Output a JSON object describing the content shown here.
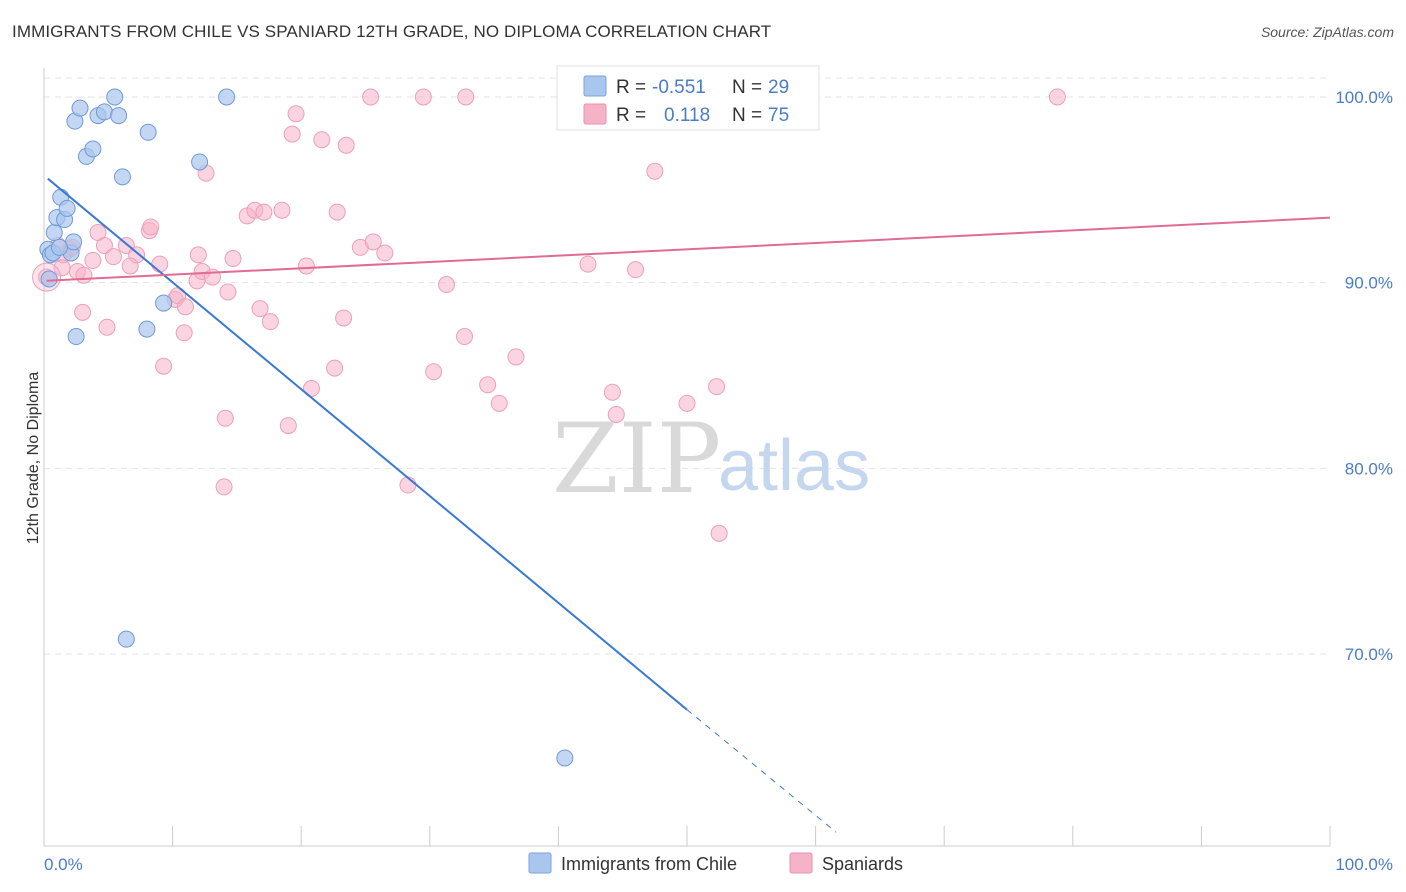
{
  "title": "IMMIGRANTS FROM CHILE VS SPANIARD 12TH GRADE, NO DIPLOMA CORRELATION CHART",
  "source": "Source: ZipAtlas.com",
  "watermark": {
    "zip": "ZIP",
    "atlas": "atlas"
  },
  "colors": {
    "blue": "#4a7cc9",
    "blue_fill": "#a9c6ee",
    "blue_line": "#3b78d4",
    "pink_fill": "#f5b3c8",
    "pink_line": "#e06c92",
    "grid": "#e3e3e3",
    "axis_text": "#4a7cc9"
  },
  "legend": {
    "rows": [
      {
        "r_label": "R =",
        "r_value": "-0.551",
        "n_label": "N =",
        "n_value": "29"
      },
      {
        "r_label": "R =",
        "r_value": "0.118",
        "n_label": "N =",
        "n_value": "75"
      }
    ]
  },
  "bottom_legend": [
    "Immigrants from Chile",
    "Spaniards"
  ],
  "chart_data": {
    "type": "scatter",
    "title": "IMMIGRANTS FROM CHILE VS SPANIARD 12TH GRADE, NO DIPLOMA CORRELATION CHART",
    "xlabel": "",
    "ylabel": "12th Grade, No Diploma",
    "xlim": [
      0,
      100
    ],
    "ylim": [
      61.5,
      101.5
    ],
    "x_tick_labels": [
      "0.0%",
      "100.0%"
    ],
    "y_ticks": [
      70,
      80,
      90,
      100
    ],
    "y_tick_labels": [
      "70.0%",
      "80.0%",
      "90.0%",
      "100.0%"
    ],
    "grid": true,
    "legend_position": "top-center",
    "series": [
      {
        "name": "Immigrants from Chile",
        "r": -0.551,
        "n": 29,
        "points": [
          [
            0.3,
            91.8
          ],
          [
            0.5,
            91.5
          ],
          [
            0.4,
            90.2
          ],
          [
            0.8,
            92.7
          ],
          [
            1.0,
            93.5
          ],
          [
            1.3,
            94.6
          ],
          [
            1.6,
            93.4
          ],
          [
            1.8,
            94.0
          ],
          [
            2.1,
            91.6
          ],
          [
            2.3,
            92.2
          ],
          [
            2.5,
            87.1
          ],
          [
            2.4,
            98.7
          ],
          [
            2.8,
            99.4
          ],
          [
            3.3,
            96.8
          ],
          [
            3.8,
            97.2
          ],
          [
            4.2,
            99.0
          ],
          [
            4.7,
            99.2
          ],
          [
            5.5,
            100.0
          ],
          [
            5.8,
            99.0
          ],
          [
            6.1,
            95.7
          ],
          [
            6.4,
            70.8
          ],
          [
            8.0,
            87.5
          ],
          [
            8.1,
            98.1
          ],
          [
            9.3,
            88.9
          ],
          [
            12.1,
            96.5
          ],
          [
            14.2,
            100.0
          ],
          [
            0.7,
            91.6
          ],
          [
            1.2,
            91.9
          ],
          [
            40.5,
            64.4
          ]
        ],
        "trend": {
          "x": [
            0.3,
            50.0
          ],
          "y": [
            95.6,
            67.0
          ],
          "dashed_to": {
            "x": 61.6,
            "y": 60.4
          }
        }
      },
      {
        "name": "Spaniards",
        "r": 0.118,
        "n": 75,
        "points": [
          [
            0.2,
            90.3
          ],
          [
            1.5,
            91.5
          ],
          [
            2.0,
            91.8
          ],
          [
            2.6,
            90.6
          ],
          [
            3.1,
            90.4
          ],
          [
            3.8,
            91.2
          ],
          [
            4.2,
            92.7
          ],
          [
            4.7,
            92.0
          ],
          [
            5.4,
            91.4
          ],
          [
            6.4,
            92.0
          ],
          [
            7.2,
            91.5
          ],
          [
            8.2,
            92.8
          ],
          [
            8.3,
            93.0
          ],
          [
            9.3,
            85.5
          ],
          [
            9.0,
            91.0
          ],
          [
            10.2,
            89.1
          ],
          [
            10.4,
            89.3
          ],
          [
            10.9,
            87.3
          ],
          [
            11.0,
            88.7
          ],
          [
            11.9,
            90.1
          ],
          [
            12.0,
            91.5
          ],
          [
            12.3,
            90.6
          ],
          [
            12.6,
            95.9
          ],
          [
            13.1,
            90.3
          ],
          [
            14.1,
            82.7
          ],
          [
            14.0,
            79.0
          ],
          [
            14.3,
            89.5
          ],
          [
            14.7,
            91.3
          ],
          [
            15.8,
            93.6
          ],
          [
            16.4,
            93.9
          ],
          [
            16.8,
            88.6
          ],
          [
            17.1,
            93.8
          ],
          [
            17.6,
            87.9
          ],
          [
            18.5,
            93.9
          ],
          [
            19.0,
            82.3
          ],
          [
            19.3,
            98.0
          ],
          [
            19.6,
            99.1
          ],
          [
            20.4,
            90.9
          ],
          [
            20.8,
            84.3
          ],
          [
            21.6,
            97.7
          ],
          [
            22.6,
            85.4
          ],
          [
            22.8,
            93.8
          ],
          [
            23.3,
            88.1
          ],
          [
            23.5,
            97.4
          ],
          [
            24.6,
            91.9
          ],
          [
            25.4,
            100.0
          ],
          [
            25.6,
            92.2
          ],
          [
            26.5,
            91.6
          ],
          [
            28.3,
            79.1
          ],
          [
            29.5,
            100.0
          ],
          [
            30.3,
            85.2
          ],
          [
            31.3,
            89.9
          ],
          [
            32.7,
            87.1
          ],
          [
            32.8,
            100.0
          ],
          [
            34.5,
            84.5
          ],
          [
            35.4,
            83.5
          ],
          [
            36.7,
            86.0
          ],
          [
            40.5,
            100.0
          ],
          [
            42.3,
            91.0
          ],
          [
            44.2,
            84.1
          ],
          [
            44.5,
            82.9
          ],
          [
            46.0,
            90.7
          ],
          [
            47.5,
            96.0
          ],
          [
            48.9,
            100.0
          ],
          [
            50.0,
            83.5
          ],
          [
            52.3,
            84.4
          ],
          [
            52.5,
            76.5
          ],
          [
            56.0,
            100.0
          ],
          [
            1.1,
            92.0
          ],
          [
            1.4,
            90.8
          ],
          [
            2.2,
            91.9
          ],
          [
            3.0,
            88.4
          ],
          [
            4.9,
            87.6
          ],
          [
            6.7,
            90.9
          ],
          [
            78.8,
            100.0
          ]
        ],
        "trend": {
          "x": [
            0.2,
            100.0
          ],
          "y": [
            90.1,
            93.5
          ]
        }
      }
    ]
  }
}
